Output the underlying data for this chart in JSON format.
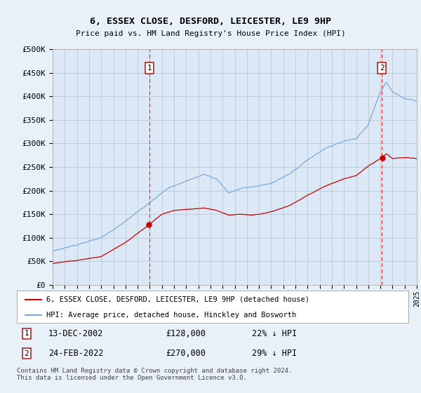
{
  "title": "6, ESSEX CLOSE, DESFORD, LEICESTER, LE9 9HP",
  "subtitle": "Price paid vs. HM Land Registry's House Price Index (HPI)",
  "background_color": "#e8f0f8",
  "plot_bg_color": "#dce8f5",
  "legend_label_red": "6, ESSEX CLOSE, DESFORD, LEICESTER, LE9 9HP (detached house)",
  "legend_label_blue": "HPI: Average price, detached house, Hinckley and Bosworth",
  "footer": "Contains HM Land Registry data © Crown copyright and database right 2024.\nThis data is licensed under the Open Government Licence v3.0.",
  "marker1": {
    "label": "1",
    "date": "13-DEC-2002",
    "price": "£128,000",
    "pct": "22% ↓ HPI"
  },
  "marker2": {
    "label": "2",
    "date": "24-FEB-2022",
    "price": "£270,000",
    "pct": "29% ↓ HPI"
  },
  "ylim": [
    0,
    500000
  ],
  "yticks": [
    0,
    50000,
    100000,
    150000,
    200000,
    250000,
    300000,
    350000,
    400000,
    450000,
    500000
  ],
  "ytick_labels": [
    "£0",
    "£50K",
    "£100K",
    "£150K",
    "£200K",
    "£250K",
    "£300K",
    "£350K",
    "£400K",
    "£450K",
    "£500K"
  ],
  "red_color": "#cc0000",
  "blue_color": "#7aaadd",
  "marker_color": "#dd2222",
  "marker_vline_color": "#ee3333",
  "grid_color": "#b8c8dc",
  "t1_year": 2002.958,
  "t2_year": 2022.125,
  "marker1_val": 128000,
  "marker2_val": 270000
}
